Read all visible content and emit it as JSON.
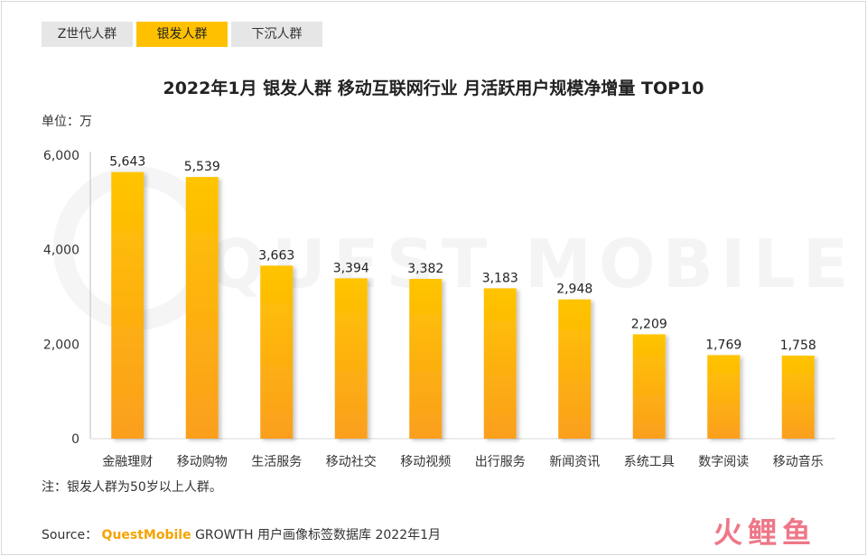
{
  "tabs": [
    {
      "label": "Z世代人群",
      "active": false
    },
    {
      "label": "银发人群",
      "active": true
    },
    {
      "label": "下沉人群",
      "active": false
    }
  ],
  "unit_label": "单位：万",
  "note": "注：银发人群为50岁以上人群。",
  "source": {
    "prefix": "Source：",
    "brand": "QuestMobile",
    "suffix": "GROWTH 用户画像标签数据库 2022年1月"
  },
  "watermark": "QUEST MOBILE",
  "logo_text": "火鲤鱼",
  "colors": {
    "accent": "#ffc000",
    "bar_top": "#ffc400",
    "bar_bottom": "#fb9f1e",
    "tab_inactive": "#e6e6e6"
  },
  "chart_data": {
    "type": "bar",
    "title": "2022年1月 银发人群 移动互联网行业 月活跃用户规模净增量 TOP10",
    "categories": [
      "金融理财",
      "移动购物",
      "生活服务",
      "移动社交",
      "移动视频",
      "出行服务",
      "新闻资讯",
      "系统工具",
      "数字阅读",
      "移动音乐"
    ],
    "values": [
      5643,
      5539,
      3663,
      3394,
      3382,
      3183,
      2948,
      2209,
      1769,
      1758
    ],
    "value_labels": [
      "5,643",
      "5,539",
      "3,663",
      "3,394",
      "3,382",
      "3,183",
      "2,948",
      "2,209",
      "1,769",
      "1,758"
    ],
    "yticks": [
      0,
      2000,
      4000,
      6000
    ],
    "ytick_labels": [
      "0",
      "2,000",
      "4,000",
      "6,000"
    ],
    "ylim": [
      0,
      6000
    ],
    "ylabel": "",
    "xlabel": "",
    "grid": false
  }
}
